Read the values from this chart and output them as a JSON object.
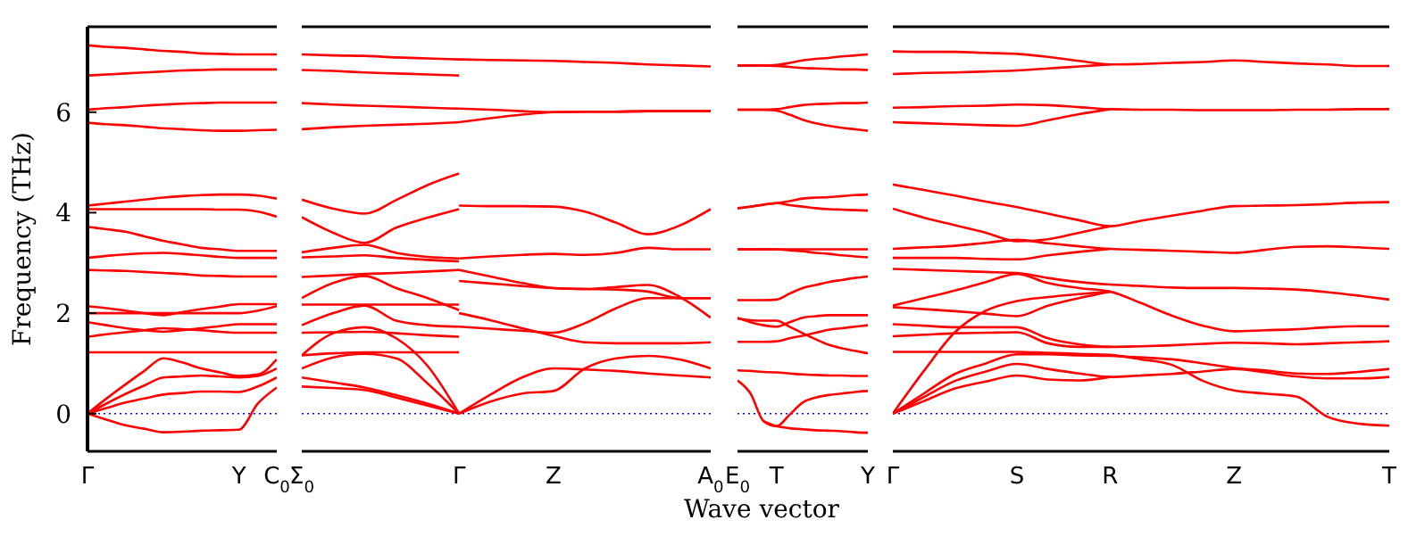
{
  "chart_data": [
    {
      "type": "line",
      "ylabel": "Frequency (THz)",
      "categories": [
        "Γ",
        null,
        null,
        null,
        null,
        null,
        null,
        null,
        "Y",
        null,
        "C$_{0}$"
      ],
      "ylim": [
        -0.75,
        7.7
      ],
      "yticks": [
        0,
        2,
        4,
        6
      ],
      "marker": "none",
      "ref_lines": [
        {
          "axis": "y",
          "value": 0,
          "label": null,
          "color": "#0000ff",
          "line_style": "dotted"
        }
      ],
      "series": [
        {
          "color": "#ff0000",
          "values": [
            7.33,
            7.3,
            7.28,
            7.25,
            7.22,
            7.2,
            7.17,
            7.16,
            7.15,
            7.15,
            7.15
          ]
        },
        {
          "color": "#ff0000",
          "values": [
            6.73,
            6.75,
            6.77,
            6.79,
            6.81,
            6.83,
            6.84,
            6.85,
            6.85,
            6.85,
            6.85
          ]
        },
        {
          "color": "#ff0000",
          "values": [
            6.05,
            6.08,
            6.1,
            6.13,
            6.15,
            6.17,
            6.18,
            6.19,
            6.19,
            6.19,
            6.19
          ]
        },
        {
          "color": "#ff0000",
          "values": [
            5.79,
            5.76,
            5.74,
            5.71,
            5.68,
            5.66,
            5.64,
            5.63,
            5.63,
            5.64,
            5.65
          ]
        },
        {
          "color": "#ff0000",
          "values": [
            4.14,
            4.18,
            4.22,
            4.26,
            4.3,
            4.33,
            4.35,
            4.36,
            4.36,
            4.34,
            4.28
          ]
        },
        {
          "color": "#ff0000",
          "values": [
            4.07,
            4.07,
            4.07,
            4.07,
            4.07,
            4.07,
            4.07,
            4.06,
            4.06,
            4.02,
            3.92
          ]
        },
        {
          "color": "#ff0000",
          "values": [
            3.72,
            3.67,
            3.62,
            3.53,
            3.44,
            3.37,
            3.3,
            3.27,
            3.24,
            3.24,
            3.24
          ]
        },
        {
          "color": "#ff0000",
          "values": [
            3.1,
            3.14,
            3.17,
            3.19,
            3.2,
            3.18,
            3.15,
            3.12,
            3.1,
            3.1,
            3.1
          ]
        },
        {
          "color": "#ff0000",
          "values": [
            2.86,
            2.85,
            2.84,
            2.82,
            2.8,
            2.78,
            2.75,
            2.74,
            2.73,
            2.73,
            2.73
          ]
        },
        {
          "color": "#ff0000",
          "values": [
            2.14,
            2.1,
            2.05,
            2.0,
            1.96,
            2.02,
            2.08,
            2.13,
            2.18,
            2.18,
            2.18
          ]
        },
        {
          "color": "#ff0000",
          "values": [
            2.0,
            2.0,
            2.0,
            2.0,
            2.0,
            2.0,
            2.0,
            2.0,
            2.0,
            2.05,
            2.14
          ]
        },
        {
          "color": "#ff0000",
          "values": [
            1.82,
            1.76,
            1.7,
            1.66,
            1.63,
            1.66,
            1.7,
            1.74,
            1.78,
            1.78,
            1.78
          ]
        },
        {
          "color": "#ff0000",
          "values": [
            1.53,
            1.58,
            1.62,
            1.66,
            1.7,
            1.68,
            1.66,
            1.63,
            1.61,
            1.61,
            1.61
          ]
        },
        {
          "color": "#ff0000",
          "values": [
            1.22,
            1.22,
            1.22,
            1.22,
            1.22,
            1.22,
            1.22,
            1.22,
            1.22,
            1.22,
            1.22
          ]
        },
        {
          "color": "#ff0000",
          "values": [
            0,
            0.3,
            0.58,
            0.85,
            1.1,
            1.02,
            0.9,
            0.82,
            0.75,
            0.78,
            1.08
          ]
        },
        {
          "color": "#ff0000",
          "values": [
            0,
            0.2,
            0.39,
            0.56,
            0.72,
            0.74,
            0.76,
            0.74,
            0.72,
            0.75,
            0.9
          ]
        },
        {
          "color": "#ff0000",
          "values": [
            0,
            0.11,
            0.22,
            0.3,
            0.38,
            0.41,
            0.44,
            0.44,
            0.43,
            0.54,
            0.72
          ]
        },
        {
          "color": "#ff0000",
          "values": [
            0,
            -0.12,
            -0.23,
            -0.3,
            -0.37,
            -0.36,
            -0.34,
            -0.33,
            -0.32,
            0.2,
            0.52
          ]
        }
      ]
    },
    {
      "type": "line",
      "tick_labels": "x",
      "categories": [
        "Σ$_{0}$",
        null,
        null,
        null,
        null,
        "Γ",
        null,
        null,
        "Z",
        null,
        null,
        null,
        null,
        "A$_{0}$"
      ],
      "ylim": [
        -0.75,
        7.7
      ],
      "yticks": [
        0,
        2,
        4,
        6
      ],
      "marker": "none",
      "ref_lines": [
        {
          "axis": "y",
          "value": 0,
          "label": null,
          "color": "#0000ff",
          "line_style": "dotted"
        }
      ],
      "series": [
        {
          "color": "#ff0000",
          "values": [
            7.15,
            7.13,
            7.12,
            7.09,
            7.07,
            7.05,
            null,
            null,
            null,
            null,
            null,
            null,
            null,
            null
          ]
        },
        {
          "color": "#ff0000",
          "values": [
            6.84,
            6.82,
            6.79,
            6.77,
            6.75,
            6.73,
            null,
            null,
            null,
            null,
            null,
            null,
            null,
            null
          ]
        },
        {
          "color": "#ff0000",
          "values": [
            6.18,
            6.15,
            6.13,
            6.11,
            6.09,
            6.07,
            null,
            null,
            null,
            null,
            null,
            null,
            null,
            null
          ]
        },
        {
          "color": "#ff0000",
          "values": [
            5.66,
            5.7,
            5.73,
            5.75,
            5.77,
            5.8,
            null,
            null,
            null,
            null,
            null,
            null,
            null,
            null
          ]
        },
        {
          "color": "#ff0000",
          "values": [
            4.26,
            4.08,
            3.98,
            4.25,
            4.55,
            4.78,
            null,
            null,
            null,
            null,
            null,
            null,
            null,
            null
          ]
        },
        {
          "color": "#ff0000",
          "values": [
            3.91,
            3.6,
            3.4,
            3.7,
            3.9,
            4.07,
            null,
            null,
            null,
            null,
            null,
            null,
            null,
            null
          ]
        },
        {
          "color": "#ff0000",
          "values": [
            3.21,
            3.3,
            3.36,
            3.2,
            3.12,
            3.09,
            null,
            null,
            null,
            null,
            null,
            null,
            null,
            null
          ]
        },
        {
          "color": "#ff0000",
          "values": [
            3.11,
            3.13,
            3.15,
            3.1,
            3.06,
            3.03,
            null,
            null,
            null,
            null,
            null,
            null,
            null,
            null
          ]
        },
        {
          "color": "#ff0000",
          "values": [
            2.72,
            2.75,
            2.78,
            2.8,
            2.83,
            2.86,
            null,
            null,
            null,
            null,
            null,
            null,
            null,
            null
          ]
        },
        {
          "color": "#ff0000",
          "values": [
            2.3,
            2.6,
            2.74,
            2.5,
            2.3,
            2.06,
            null,
            null,
            null,
            null,
            null,
            null,
            null,
            null
          ]
        },
        {
          "color": "#ff0000",
          "values": [
            2.17,
            2.17,
            2.17,
            2.17,
            2.17,
            2.17,
            null,
            null,
            null,
            null,
            null,
            null,
            null,
            null
          ]
        },
        {
          "color": "#ff0000",
          "values": [
            1.76,
            2.0,
            2.15,
            1.85,
            1.76,
            1.73,
            null,
            null,
            null,
            null,
            null,
            null,
            null,
            null
          ]
        },
        {
          "color": "#ff0000",
          "values": [
            1.61,
            1.62,
            1.63,
            1.6,
            1.56,
            1.53,
            null,
            null,
            null,
            null,
            null,
            null,
            null,
            null
          ]
        },
        {
          "color": "#ff0000",
          "values": [
            1.16,
            1.2,
            1.22,
            1.22,
            1.22,
            1.22,
            null,
            null,
            null,
            null,
            null,
            null,
            null,
            null
          ]
        },
        {
          "color": "#ff0000",
          "values": [
            0.9,
            1.12,
            1.19,
            1.1,
            0.6,
            0,
            null,
            null,
            null,
            null,
            null,
            null,
            null,
            null
          ]
        },
        {
          "color": "#ff0000",
          "values": [
            1.16,
            1.6,
            1.72,
            1.5,
            0.95,
            0,
            null,
            null,
            null,
            null,
            null,
            null,
            null,
            null
          ]
        },
        {
          "color": "#ff0000",
          "values": [
            0.72,
            0.62,
            0.52,
            0.37,
            0.2,
            0,
            null,
            null,
            null,
            null,
            null,
            null,
            null,
            null
          ]
        },
        {
          "color": "#ff0000",
          "values": [
            0.54,
            0.51,
            0.47,
            0.32,
            0.16,
            0,
            null,
            null,
            null,
            null,
            null,
            null,
            null,
            null
          ]
        },
        {
          "color": "#ff0000",
          "values": [
            null,
            null,
            null,
            null,
            null,
            7.05,
            7.04,
            7.03,
            7.02,
            7.0,
            6.98,
            6.95,
            6.93,
            6.91
          ]
        },
        {
          "color": "#ff0000",
          "values": [
            null,
            null,
            null,
            null,
            null,
            6.07,
            6.05,
            6.02,
            6.0,
            6.01,
            6.01,
            6.02,
            6.02,
            6.02
          ]
        },
        {
          "color": "#ff0000",
          "values": [
            null,
            null,
            null,
            null,
            null,
            5.8,
            5.88,
            5.95,
            6.0,
            6.01,
            6.01,
            6.02,
            6.02,
            6.02
          ]
        },
        {
          "color": "#ff0000",
          "values": [
            null,
            null,
            null,
            null,
            null,
            4.14,
            4.13,
            4.13,
            4.12,
            4.02,
            3.8,
            3.57,
            3.74,
            4.07
          ]
        },
        {
          "color": "#ff0000",
          "values": [
            null,
            null,
            null,
            null,
            null,
            3.09,
            3.13,
            3.16,
            3.18,
            3.16,
            3.2,
            3.3,
            3.27,
            3.27
          ]
        },
        {
          "color": "#ff0000",
          "values": [
            null,
            null,
            null,
            null,
            null,
            2.64,
            2.59,
            2.54,
            2.5,
            2.48,
            2.52,
            2.56,
            2.33,
            1.91
          ]
        },
        {
          "color": "#ff0000",
          "values": [
            null,
            null,
            null,
            null,
            null,
            2.86,
            2.73,
            2.6,
            2.5,
            2.48,
            2.47,
            2.43,
            2.3,
            2.3
          ]
        },
        {
          "color": "#ff0000",
          "values": [
            null,
            null,
            null,
            null,
            null,
            2.0,
            1.86,
            1.7,
            1.55,
            1.42,
            1.4,
            1.4,
            1.4,
            1.42
          ]
        },
        {
          "color": "#ff0000",
          "values": [
            null,
            null,
            null,
            null,
            null,
            1.73,
            1.69,
            1.65,
            1.61,
            1.8,
            2.1,
            2.3,
            2.3,
            2.3
          ]
        },
        {
          "color": "#ff0000",
          "values": [
            null,
            null,
            null,
            null,
            null,
            0,
            0.38,
            0.72,
            0.9,
            0.88,
            0.85,
            0.8,
            0.76,
            0.72
          ]
        },
        {
          "color": "#ff0000",
          "values": [
            null,
            null,
            null,
            null,
            null,
            0,
            0.24,
            0.4,
            0.45,
            0.9,
            1.1,
            1.15,
            1.08,
            0.9
          ]
        }
      ]
    },
    {
      "type": "line",
      "tick_labels": "x",
      "xlabel": "Wave vector",
      "categories": [
        "E$_{0}$",
        null,
        null,
        "T",
        null,
        null,
        null,
        null,
        null,
        null,
        "Y"
      ],
      "ylim": [
        -0.75,
        7.7
      ],
      "yticks": [
        0,
        2,
        4,
        6
      ],
      "marker": "none",
      "ref_lines": [
        {
          "axis": "y",
          "value": 0,
          "label": null,
          "color": "#0000ff",
          "line_style": "dotted"
        }
      ],
      "series": [
        {
          "color": "#ff0000",
          "values": [
            6.93,
            6.93,
            6.93,
            6.94,
            6.98,
            7.03,
            7.06,
            7.08,
            7.11,
            7.13,
            7.15
          ]
        },
        {
          "color": "#ff0000",
          "values": [
            6.93,
            6.93,
            6.93,
            6.92,
            6.9,
            6.88,
            6.87,
            6.86,
            6.85,
            6.85,
            6.84
          ]
        },
        {
          "color": "#ff0000",
          "values": [
            6.05,
            6.05,
            6.05,
            6.06,
            6.1,
            6.14,
            6.16,
            6.17,
            6.18,
            6.18,
            6.19
          ]
        },
        {
          "color": "#ff0000",
          "values": [
            6.05,
            6.05,
            6.05,
            6.03,
            5.95,
            5.85,
            5.78,
            5.73,
            5.69,
            5.66,
            5.63
          ]
        },
        {
          "color": "#ff0000",
          "values": [
            4.09,
            4.12,
            4.16,
            4.19,
            4.23,
            4.28,
            4.3,
            4.31,
            4.33,
            4.35,
            4.36
          ]
        },
        {
          "color": "#ff0000",
          "values": [
            4.09,
            4.12,
            4.16,
            4.19,
            4.15,
            4.12,
            4.09,
            4.07,
            4.06,
            4.05,
            4.04
          ]
        },
        {
          "color": "#ff0000",
          "values": [
            3.27,
            3.27,
            3.27,
            3.27,
            3.25,
            3.23,
            3.2,
            3.18,
            3.15,
            3.13,
            3.11
          ]
        },
        {
          "color": "#ff0000",
          "values": [
            3.27,
            3.27,
            3.27,
            3.27,
            3.27,
            3.27,
            3.27,
            3.27,
            3.27,
            3.27,
            3.27
          ]
        },
        {
          "color": "#ff0000",
          "values": [
            2.26,
            2.26,
            2.26,
            2.27,
            2.39,
            2.5,
            2.56,
            2.62,
            2.66,
            2.7,
            2.73
          ]
        },
        {
          "color": "#ff0000",
          "values": [
            1.91,
            1.82,
            1.76,
            1.73,
            1.82,
            1.91,
            1.94,
            1.96,
            1.96,
            1.96,
            1.96
          ]
        },
        {
          "color": "#ff0000",
          "values": [
            1.89,
            1.86,
            1.85,
            1.85,
            1.73,
            1.6,
            1.48,
            1.37,
            1.3,
            1.25,
            1.2
          ]
        },
        {
          "color": "#ff0000",
          "values": [
            1.43,
            1.43,
            1.43,
            1.44,
            1.5,
            1.55,
            1.61,
            1.67,
            1.7,
            1.73,
            1.76
          ]
        },
        {
          "color": "#ff0000",
          "values": [
            0.86,
            0.85,
            0.83,
            0.82,
            0.8,
            0.78,
            0.77,
            0.76,
            0.76,
            0.75,
            0.75
          ]
        },
        {
          "color": "#ff0000",
          "values": [
            0.66,
            0.4,
            -0.15,
            -0.25,
            -0.02,
            0.22,
            0.32,
            0.37,
            0.4,
            0.43,
            0.45
          ]
        },
        {
          "color": "#ff0000",
          "values": [
            null,
            null,
            -0.15,
            -0.25,
            -0.29,
            -0.31,
            -0.33,
            -0.34,
            -0.35,
            -0.37,
            -0.38
          ]
        }
      ]
    },
    {
      "type": "line",
      "tick_labels": "x",
      "categories": [
        "Γ",
        null,
        null,
        null,
        "S",
        null,
        null,
        "R",
        null,
        null,
        null,
        "Z",
        null,
        null,
        null,
        null,
        "T"
      ],
      "ylim": [
        -0.75,
        7.7
      ],
      "yticks": [
        0,
        2,
        4,
        6
      ],
      "marker": "none",
      "ref_lines": [
        {
          "axis": "y",
          "value": 0,
          "label": null,
          "color": "#0000ff",
          "line_style": "dotted"
        }
      ],
      "series": [
        {
          "color": "#ff0000",
          "values": [
            7.21,
            7.2,
            7.2,
            7.18,
            7.16,
            7.1,
            7.02,
            6.95,
            6.96,
            6.98,
            7.0,
            7.03,
            7.0,
            6.97,
            6.95,
            6.92,
            6.92
          ]
        },
        {
          "color": "#ff0000",
          "values": [
            6.76,
            6.78,
            6.79,
            6.81,
            6.83,
            6.87,
            6.91,
            6.95,
            null,
            null,
            null,
            null,
            null,
            null,
            null,
            null,
            null
          ]
        },
        {
          "color": "#ff0000",
          "values": [
            6.09,
            6.1,
            6.12,
            6.13,
            6.15,
            6.14,
            6.1,
            6.06,
            6.05,
            6.05,
            6.04,
            6.04,
            6.04,
            6.05,
            6.05,
            6.06,
            6.06
          ]
        },
        {
          "color": "#ff0000",
          "values": [
            5.8,
            5.78,
            5.76,
            5.74,
            5.73,
            5.84,
            5.96,
            6.06,
            null,
            null,
            null,
            null,
            null,
            null,
            null,
            null,
            null
          ]
        },
        {
          "color": "#ff0000",
          "values": [
            4.56,
            4.45,
            4.34,
            4.22,
            4.11,
            3.98,
            3.85,
            3.73,
            3.84,
            3.94,
            4.04,
            4.13,
            4.14,
            4.15,
            4.17,
            4.2,
            4.21
          ]
        },
        {
          "color": "#ff0000",
          "values": [
            4.08,
            3.9,
            3.75,
            3.6,
            3.43,
            3.47,
            3.6,
            3.73,
            null,
            null,
            null,
            null,
            null,
            null,
            null,
            null,
            null
          ]
        },
        {
          "color": "#ff0000",
          "values": [
            3.28,
            3.31,
            3.34,
            3.4,
            3.46,
            3.39,
            3.33,
            3.28,
            3.26,
            3.24,
            3.22,
            3.2,
            3.26,
            3.32,
            3.33,
            3.31,
            3.28
          ]
        },
        {
          "color": "#ff0000",
          "values": [
            3.1,
            3.1,
            3.1,
            3.08,
            3.07,
            3.15,
            3.22,
            3.28,
            null,
            null,
            null,
            null,
            null,
            null,
            null,
            null,
            null
          ]
        },
        {
          "color": "#ff0000",
          "values": [
            2.88,
            2.86,
            2.84,
            2.82,
            2.8,
            2.7,
            2.62,
            2.57,
            2.54,
            2.51,
            2.5,
            2.5,
            2.49,
            2.47,
            2.42,
            2.35,
            2.27
          ]
        },
        {
          "color": "#ff0000",
          "values": [
            2.15,
            2.3,
            2.45,
            2.62,
            2.78,
            2.6,
            2.5,
            2.43,
            2.2,
            1.95,
            1.75,
            1.64,
            1.66,
            1.68,
            1.72,
            1.74,
            1.74
          ]
        },
        {
          "color": "#ff0000",
          "values": [
            2.12,
            2.08,
            2.04,
            1.99,
            1.94,
            2.15,
            2.3,
            2.43,
            null,
            null,
            null,
            null,
            null,
            null,
            null,
            null,
            null
          ]
        },
        {
          "color": "#ff0000",
          "values": [
            0,
            0.85,
            1.62,
            2.05,
            2.24,
            2.32,
            2.38,
            2.43,
            null,
            null,
            null,
            null,
            null,
            null,
            null,
            null,
            null
          ]
        },
        {
          "color": "#ff0000",
          "values": [
            1.78,
            1.75,
            1.72,
            1.72,
            1.72,
            1.5,
            1.38,
            1.33,
            1.34,
            1.36,
            1.39,
            1.41,
            1.4,
            1.38,
            1.4,
            1.42,
            1.44
          ]
        },
        {
          "color": "#ff0000",
          "values": [
            1.54,
            1.57,
            1.6,
            1.61,
            1.62,
            1.4,
            1.33,
            1.33,
            null,
            null,
            null,
            null,
            null,
            null,
            null,
            null,
            null
          ]
        },
        {
          "color": "#ff0000",
          "values": [
            1.23,
            1.23,
            1.23,
            1.23,
            1.23,
            1.21,
            1.19,
            1.17,
            1.08,
            0.97,
            0.65,
            0.46,
            0.4,
            0.34,
            -0.06,
            -0.2,
            -0.24
          ]
        },
        {
          "color": "#ff0000",
          "values": [
            0,
            0.4,
            0.79,
            1.0,
            1.18,
            1.18,
            1.16,
            1.15,
            1.12,
            1.08,
            1.0,
            0.91,
            0.86,
            0.8,
            0.79,
            0.83,
            0.89
          ]
        },
        {
          "color": "#ff0000",
          "values": [
            0,
            0.33,
            0.65,
            0.84,
            0.99,
            0.89,
            0.8,
            0.73,
            0.76,
            0.79,
            0.84,
            0.89,
            0.82,
            0.74,
            0.7,
            0.7,
            0.73
          ]
        },
        {
          "color": "#ff0000",
          "values": [
            0,
            0.25,
            0.5,
            0.64,
            0.76,
            0.68,
            0.66,
            0.73,
            null,
            null,
            null,
            null,
            null,
            null,
            null,
            null,
            null
          ]
        }
      ]
    }
  ]
}
